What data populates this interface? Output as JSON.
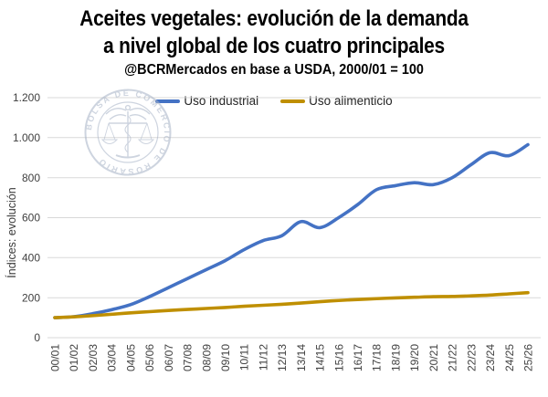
{
  "header": {
    "title_line1": "Aceites vegetales: evolución de la demanda",
    "title_line2": "a nivel global de los cuatro principales",
    "subtitle": "@BCRMercados en base a USDA, 2000/01 = 100"
  },
  "watermark": {
    "text": "BOLSA DE COMERCIO DE ROSARIO",
    "color": "#A6B1C5"
  },
  "colors": {
    "gridline": "#D9D9D9",
    "axis_text": "#404040",
    "legend_text": "#262626",
    "title_text": "#000000",
    "background": "#FFFFFF"
  },
  "chart_data": {
    "type": "line",
    "title": "Aceites vegetales: evolución de la demanda a nivel global de los cuatro principales",
    "subtitle": "@BCRMercados en base a USDA, 2000/01 = 100",
    "xlabel": "",
    "ylabel": "Índices: evolución",
    "ylim": [
      0,
      1200
    ],
    "y_tick_interval": 200,
    "y_ticks": [
      {
        "value": 0,
        "label": "0"
      },
      {
        "value": 200,
        "label": "200"
      },
      {
        "value": 400,
        "label": "400"
      },
      {
        "value": 600,
        "label": "600"
      },
      {
        "value": 800,
        "label": "800"
      },
      {
        "value": 1000,
        "label": "1.000"
      },
      {
        "value": 1200,
        "label": "1.200"
      }
    ],
    "grid": "horizontal",
    "legend_position": "top",
    "smooth_lines": true,
    "base_note": "2000/01 = 100",
    "categories": [
      "00/01",
      "01/02",
      "02/03",
      "03/04",
      "04/05",
      "05/06",
      "06/07",
      "07/08",
      "08/09",
      "09/10",
      "10/11",
      "11/12",
      "12/13",
      "13/14",
      "14/15",
      "15/16",
      "16/17",
      "17/18",
      "18/19",
      "19/20",
      "20/21",
      "21/22",
      "22/23",
      "23/24",
      "24/25",
      "25/26"
    ],
    "series": [
      {
        "name": "Uso industrial",
        "color": "#4472C4",
        "values": [
          100,
          105,
          120,
          140,
          165,
          205,
          250,
          295,
          340,
          385,
          440,
          485,
          510,
          580,
          550,
          600,
          665,
          740,
          760,
          775,
          765,
          800,
          865,
          925,
          910,
          965
        ]
      },
      {
        "name": "Uso alimenticio",
        "color": "#BF8F00",
        "values": [
          100,
          104,
          110,
          117,
          124,
          130,
          136,
          141,
          146,
          151,
          157,
          162,
          167,
          173,
          180,
          186,
          191,
          195,
          199,
          202,
          205,
          206,
          209,
          213,
          219,
          225
        ]
      }
    ]
  }
}
